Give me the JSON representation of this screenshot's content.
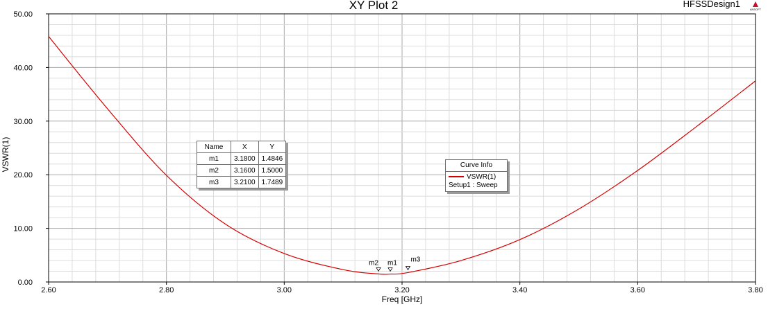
{
  "header": {
    "title": "XY Plot 2",
    "design": "HFSSDesign1",
    "logo_text": "ANSOFT"
  },
  "chart_data": {
    "type": "line",
    "title": "XY Plot 2",
    "xlabel": "Freq [GHz]",
    "ylabel": "VSWR(1)",
    "xlim": [
      2.6,
      3.8
    ],
    "ylim": [
      0,
      50
    ],
    "grid": true,
    "x_ticks": [
      "2.60",
      "2.80",
      "3.00",
      "3.20",
      "3.40",
      "3.60",
      "3.80"
    ],
    "y_ticks": [
      "0.00",
      "10.00",
      "20.00",
      "30.00",
      "40.00",
      "50.00"
    ],
    "series": [
      {
        "name": "VSWR(1)",
        "color": "#d40000",
        "x": [
          2.6,
          2.7,
          2.8,
          2.9,
          3.0,
          3.1,
          3.16,
          3.18,
          3.21,
          3.3,
          3.4,
          3.5,
          3.6,
          3.7,
          3.8
        ],
        "y": [
          45.8,
          32.3,
          19.9,
          10.8,
          5.3,
          2.3,
          1.5,
          1.48,
          1.75,
          4.0,
          7.9,
          13.6,
          20.8,
          29.0,
          37.5
        ]
      }
    ],
    "markers": [
      {
        "name": "m1",
        "x": "3.1800",
        "y": "1.4846",
        "xv": 3.18,
        "yv": 1.4846
      },
      {
        "name": "m2",
        "x": "3.1600",
        "y": "1.5000",
        "xv": 3.16,
        "yv": 1.5
      },
      {
        "name": "m3",
        "x": "3.2100",
        "y": "1.7489",
        "xv": 3.21,
        "yv": 1.7489
      }
    ],
    "marker_table": {
      "headers": [
        "Name",
        "X",
        "Y"
      ]
    },
    "legend": {
      "title": "Curve Info",
      "entry": "VSWR(1)",
      "sub": "Setup1 : Sweep",
      "placement": "center-right"
    }
  }
}
